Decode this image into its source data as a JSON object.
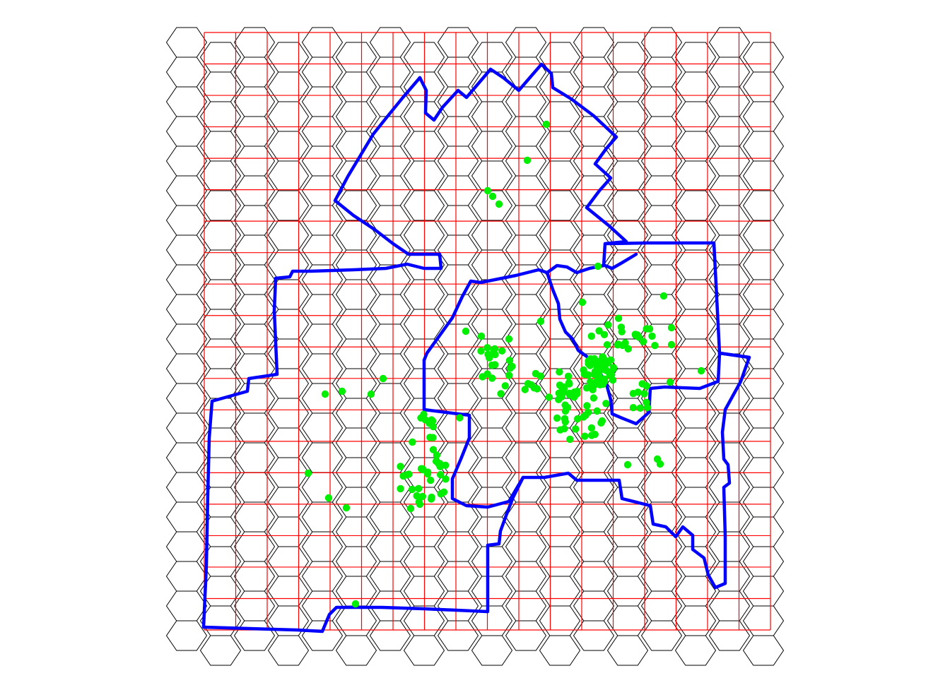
{
  "colors": {
    "background": "#ffffff",
    "hex_grid": "#000000",
    "square_grid": "#ff0000",
    "boundary": "#0000ff",
    "points": "#00ee00"
  },
  "layers": [
    "hex-grid",
    "square-grid",
    "boundary-outline",
    "point-features"
  ],
  "boundary_count": 2,
  "point_count": 230
}
